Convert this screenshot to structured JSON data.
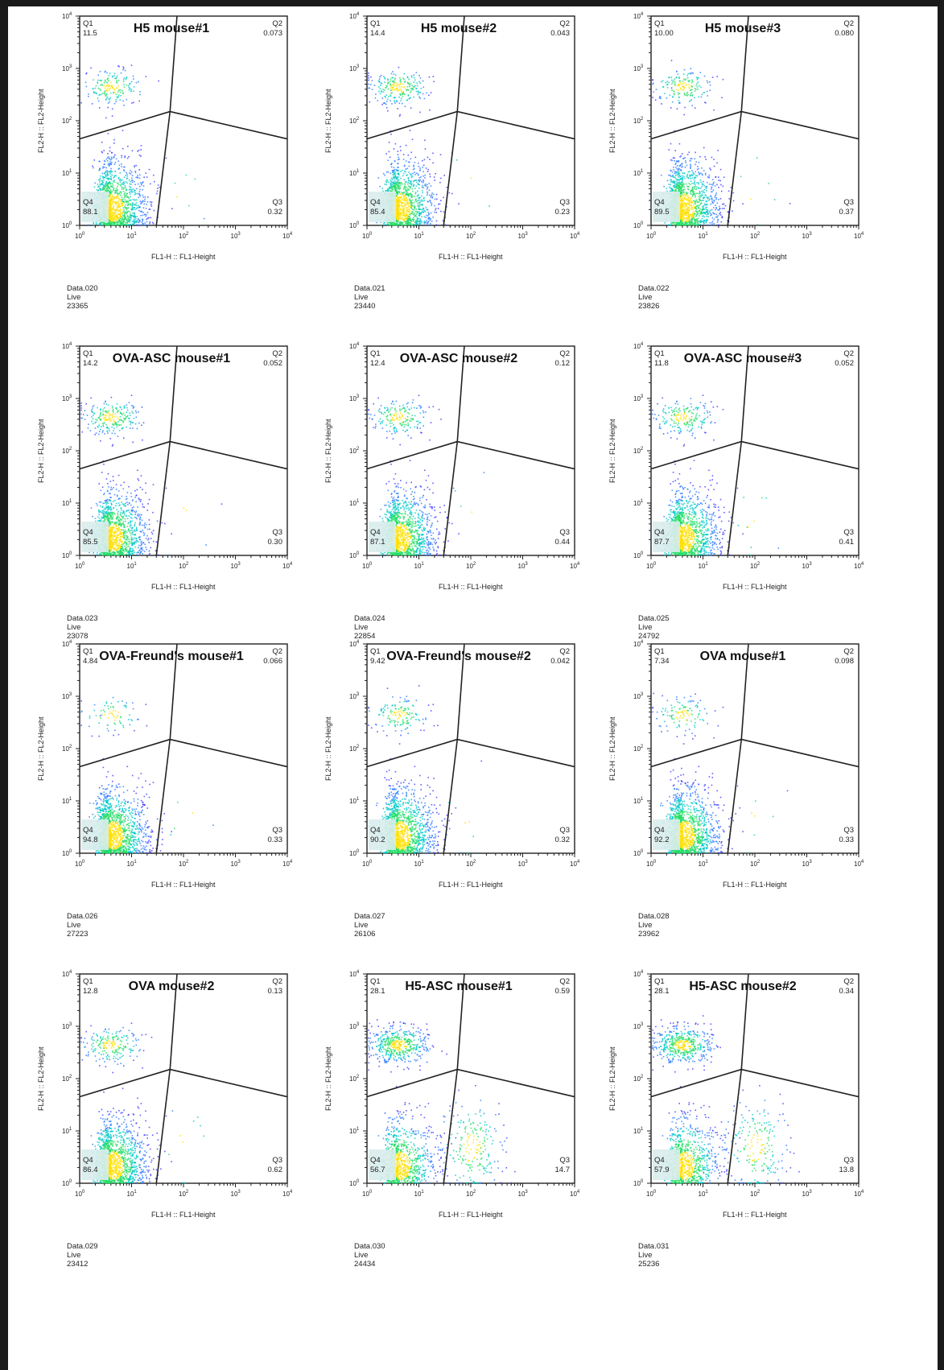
{
  "chart_data": [
    {
      "type": "scatter",
      "title": "H5 mouse#1",
      "xlabel": "FL1-H :: FL1-Height",
      "ylabel": "FL2-H :: FL2-Height",
      "x_scale": "log",
      "y_scale": "log",
      "xlim": [
        1,
        10000
      ],
      "ylim": [
        1,
        10000
      ],
      "quadrants": {
        "Q1": "11.5",
        "Q2": "0.073",
        "Q3": "0.32",
        "Q4": "88.1"
      },
      "sample": "Data.020",
      "gate": "Live",
      "events": "23365"
    },
    {
      "type": "scatter",
      "title": "H5 mouse#2",
      "xlabel": "FL1-H :: FL1-Height",
      "ylabel": "FL2-H :: FL2-Height",
      "x_scale": "log",
      "y_scale": "log",
      "xlim": [
        1,
        10000
      ],
      "ylim": [
        1,
        10000
      ],
      "quadrants": {
        "Q1": "14.4",
        "Q2": "0.043",
        "Q3": "0.23",
        "Q4": "85.4"
      },
      "sample": "Data.021",
      "gate": "Live",
      "events": "23440"
    },
    {
      "type": "scatter",
      "title": "H5 mouse#3",
      "xlabel": "FL1-H :: FL1-Height",
      "ylabel": "FL2-H :: FL2-Height",
      "x_scale": "log",
      "y_scale": "log",
      "xlim": [
        1,
        10000
      ],
      "ylim": [
        1,
        10000
      ],
      "quadrants": {
        "Q1": "10.00",
        "Q2": "0.080",
        "Q3": "0.37",
        "Q4": "89.5"
      },
      "sample": "Data.022",
      "gate": "Live",
      "events": "23826"
    },
    {
      "type": "scatter",
      "title": "OVA-ASC mouse#1",
      "xlabel": "FL1-H :: FL1-Height",
      "ylabel": "FL2-H :: FL2-Height",
      "x_scale": "log",
      "y_scale": "log",
      "xlim": [
        1,
        10000
      ],
      "ylim": [
        1,
        10000
      ],
      "quadrants": {
        "Q1": "14.2",
        "Q2": "0.052",
        "Q3": "0.30",
        "Q4": "85.5"
      },
      "sample": "Data.023",
      "gate": "Live",
      "events": "23078"
    },
    {
      "type": "scatter",
      "title": "OVA-ASC mouse#2",
      "xlabel": "FL1-H :: FL1-Height",
      "ylabel": "FL2-H :: FL2-Height",
      "x_scale": "log",
      "y_scale": "log",
      "xlim": [
        1,
        10000
      ],
      "ylim": [
        1,
        10000
      ],
      "quadrants": {
        "Q1": "12.4",
        "Q2": "0.12",
        "Q3": "0.44",
        "Q4": "87.1"
      },
      "sample": "Data.024",
      "gate": "Live",
      "events": "22854"
    },
    {
      "type": "scatter",
      "title": "OVA-ASC mouse#3",
      "xlabel": "FL1-H :: FL1-Height",
      "ylabel": "FL2-H :: FL2-Height",
      "x_scale": "log",
      "y_scale": "log",
      "xlim": [
        1,
        10000
      ],
      "ylim": [
        1,
        10000
      ],
      "quadrants": {
        "Q1": "11.8",
        "Q2": "0.052",
        "Q3": "0.41",
        "Q4": "87.7"
      },
      "sample": "Data.025",
      "gate": "Live",
      "events": "24792"
    },
    {
      "type": "scatter",
      "title": "OVA-Freund's mouse#1",
      "xlabel": "FL1-H :: FL1-Height",
      "ylabel": "FL2-H :: FL2-Height",
      "x_scale": "log",
      "y_scale": "log",
      "xlim": [
        1,
        10000
      ],
      "ylim": [
        1,
        10000
      ],
      "quadrants": {
        "Q1": "4.84",
        "Q2": "0.066",
        "Q3": "0.33",
        "Q4": "94.8"
      },
      "sample": "Data.026",
      "gate": "Live",
      "events": "27223"
    },
    {
      "type": "scatter",
      "title": "OVA-Freund's mouse#2",
      "xlabel": "FL1-H :: FL1-Height",
      "ylabel": "FL2-H :: FL2-Height",
      "x_scale": "log",
      "y_scale": "log",
      "xlim": [
        1,
        10000
      ],
      "ylim": [
        1,
        10000
      ],
      "quadrants": {
        "Q1": "9.42",
        "Q2": "0.042",
        "Q3": "0.32",
        "Q4": "90.2"
      },
      "sample": "Data.027",
      "gate": "Live",
      "events": "26106"
    },
    {
      "type": "scatter",
      "title": "OVA mouse#1",
      "xlabel": "FL1-H :: FL1-Height",
      "ylabel": "FL2-H :: FL2-Height",
      "x_scale": "log",
      "y_scale": "log",
      "xlim": [
        1,
        10000
      ],
      "ylim": [
        1,
        10000
      ],
      "quadrants": {
        "Q1": "7.34",
        "Q2": "0.098",
        "Q3": "0.33",
        "Q4": "92.2"
      },
      "sample": "Data.028",
      "gate": "Live",
      "events": "23962"
    },
    {
      "type": "scatter",
      "title": "OVA mouse#2",
      "xlabel": "FL1-H :: FL1-Height",
      "ylabel": "FL2-H :: FL2-Height",
      "x_scale": "log",
      "y_scale": "log",
      "xlim": [
        1,
        10000
      ],
      "ylim": [
        1,
        10000
      ],
      "quadrants": {
        "Q1": "12.8",
        "Q2": "0.13",
        "Q3": "0.62",
        "Q4": "86.4"
      },
      "sample": "Data.029",
      "gate": "Live",
      "events": "23412"
    },
    {
      "type": "scatter",
      "title": "H5-ASC mouse#1",
      "xlabel": "FL1-H :: FL1-Height",
      "ylabel": "FL2-H :: FL2-Height",
      "x_scale": "log",
      "y_scale": "log",
      "xlim": [
        1,
        10000
      ],
      "ylim": [
        1,
        10000
      ],
      "quadrants": {
        "Q1": "28.1",
        "Q2": "0.59",
        "Q3": "14.7",
        "Q4": "56.7"
      },
      "sample": "Data.030",
      "gate": "Live",
      "events": "24434"
    },
    {
      "type": "scatter",
      "title": "H5-ASC mouse#2",
      "xlabel": "FL1-H :: FL1-Height",
      "ylabel": "FL2-H :: FL2-Height",
      "x_scale": "log",
      "y_scale": "log",
      "xlim": [
        1,
        10000
      ],
      "ylim": [
        1,
        10000
      ],
      "quadrants": {
        "Q1": "28.1",
        "Q2": "0.34",
        "Q3": "13.8",
        "Q4": "57.9"
      },
      "sample": "Data.031",
      "gate": "Live",
      "events": "25236"
    }
  ],
  "colors": {
    "gate": "#222222",
    "q4_box": "#d9ecec",
    "density_low": "#3a3aff",
    "density_mid": "#00c8c8",
    "density_high": "#ffe000"
  }
}
